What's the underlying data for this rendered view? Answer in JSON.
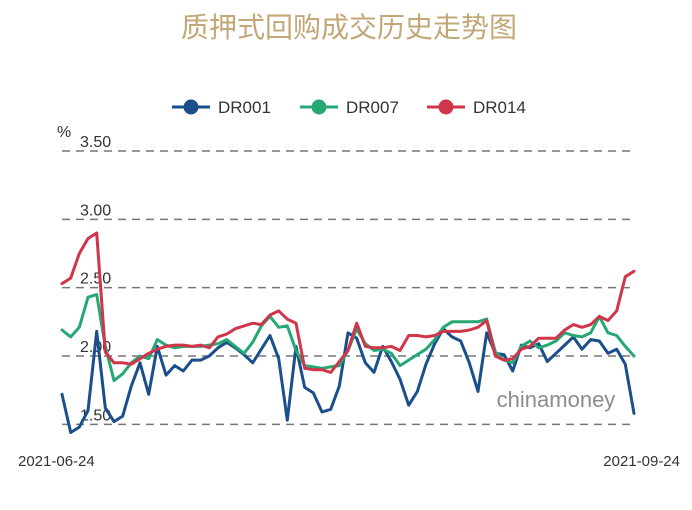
{
  "chart_data": {
    "type": "line",
    "title": "质押式回购成交历史走势图",
    "unit": "%",
    "y_ticks": [
      "3.50",
      "3.00",
      "2.50",
      "2.00",
      "1.50"
    ],
    "ylim": [
      1.4,
      3.5
    ],
    "x_labels": [
      "2021-06-24",
      "2021-09-24"
    ],
    "legend_position": "top",
    "grid": true,
    "watermark": "chinamoney",
    "series": [
      {
        "name": "DR001",
        "color": "#1a4f8b",
        "values": [
          1.72,
          1.44,
          1.48,
          1.6,
          2.18,
          1.62,
          1.52,
          1.56,
          1.78,
          1.95,
          1.72,
          2.07,
          1.86,
          1.93,
          1.89,
          1.97,
          1.97,
          2.0,
          2.06,
          2.1,
          2.06,
          2.01,
          1.95,
          2.05,
          2.15,
          1.98,
          1.53,
          2.07,
          1.77,
          1.73,
          1.59,
          1.61,
          1.78,
          2.17,
          2.13,
          1.95,
          1.88,
          2.07,
          1.96,
          1.83,
          1.64,
          1.74,
          1.94,
          2.09,
          2.2,
          2.14,
          2.11,
          1.95,
          1.74,
          2.17,
          2.02,
          2.01,
          1.89,
          2.08,
          2.06,
          2.09,
          1.96,
          2.02,
          2.08,
          2.14,
          2.05,
          2.12,
          2.11,
          2.02,
          2.05,
          1.94,
          1.58
        ]
      },
      {
        "name": "DR007",
        "color": "#26a872",
        "values": [
          2.19,
          2.14,
          2.21,
          2.43,
          2.45,
          2.07,
          1.82,
          1.87,
          1.95,
          2.0,
          1.98,
          2.12,
          2.08,
          2.06,
          2.07,
          2.07,
          2.07,
          2.08,
          2.09,
          2.12,
          2.07,
          2.02,
          2.1,
          2.22,
          2.29,
          2.21,
          2.22,
          2.04,
          1.93,
          1.92,
          1.91,
          1.92,
          1.93,
          2.04,
          2.2,
          2.09,
          2.04,
          2.05,
          2.02,
          1.93,
          1.97,
          2.01,
          2.05,
          2.12,
          2.21,
          2.25,
          2.25,
          2.25,
          2.25,
          2.27,
          2.03,
          1.97,
          1.95,
          2.07,
          2.11,
          2.06,
          2.08,
          2.11,
          2.17,
          2.15,
          2.14,
          2.17,
          2.29,
          2.17,
          2.15,
          2.07,
          2.0
        ]
      },
      {
        "name": "DR014",
        "color": "#d0354a",
        "values": [
          2.53,
          2.57,
          2.75,
          2.86,
          2.9,
          2.03,
          1.95,
          1.95,
          1.94,
          1.98,
          2.02,
          2.05,
          2.07,
          2.08,
          2.08,
          2.07,
          2.08,
          2.06,
          2.14,
          2.16,
          2.2,
          2.22,
          2.24,
          2.23,
          2.3,
          2.33,
          2.27,
          2.24,
          1.91,
          1.9,
          1.9,
          1.88,
          1.96,
          2.04,
          2.24,
          2.07,
          2.06,
          2.06,
          2.07,
          2.04,
          2.15,
          2.15,
          2.14,
          2.15,
          2.18,
          2.18,
          2.18,
          2.19,
          2.21,
          2.26,
          2.0,
          1.97,
          1.98,
          2.05,
          2.07,
          2.13,
          2.13,
          2.13,
          2.19,
          2.23,
          2.21,
          2.23,
          2.29,
          2.26,
          2.33,
          2.58,
          2.62
        ]
      }
    ]
  }
}
